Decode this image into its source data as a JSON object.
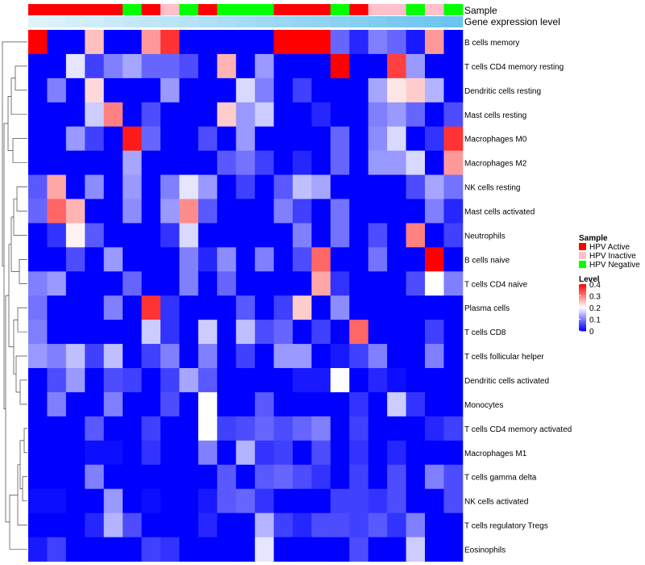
{
  "chart_data": {
    "type": "heatmap",
    "annotation_labels": [
      "Sample",
      "Gene expression level"
    ],
    "samples": [
      "HPV Active",
      "HPV Active",
      "HPV Active",
      "HPV Active",
      "HPV Active",
      "HPV Negative",
      "HPV Active",
      "HPV Inactive",
      "HPV Negative",
      "HPV Active",
      "HPV Negative",
      "HPV Negative",
      "HPV Negative",
      "HPV Active",
      "HPV Active",
      "HPV Active",
      "HPV Negative",
      "HPV Active",
      "HPV Inactive",
      "HPV Inactive",
      "HPV Negative",
      "HPV Inactive",
      "HPV Negative"
    ],
    "gene_expression_gradient": [
      "#e0f3fb",
      "#6ac4ee"
    ],
    "rows": [
      "B cells memory",
      "T cells CD4 memory resting",
      "Dendritic cells resting",
      "Mast cells resting",
      "Macrophages M0",
      "Macrophages M2",
      "NK cells resting",
      "Mast cells activated",
      "Neutrophils",
      "B cells naive",
      "T cells CD4 naive",
      "Plasma cells",
      "T cells CD8",
      "T cells follicular helper",
      "Dendritic cells activated",
      "Monocytes",
      "T cells CD4 memory activated",
      "Macrophages M1",
      "T cells gamma delta",
      "NK cells activated",
      "T cells regulatory  Tregs",
      "Eosinophils"
    ],
    "values": [
      [
        0.4,
        0.0,
        0.0,
        0.25,
        0.0,
        0.0,
        0.28,
        0.36,
        0.0,
        0.0,
        0.0,
        0.0,
        0.0,
        0.4,
        0.4,
        0.4,
        0.08,
        0.03,
        0.1,
        0.08,
        0.02,
        0.28,
        0.0
      ],
      [
        0.0,
        0.0,
        0.18,
        0.05,
        0.1,
        0.13,
        0.08,
        0.08,
        0.06,
        0.0,
        0.26,
        0.0,
        0.12,
        0.0,
        0.0,
        0.0,
        0.4,
        0.0,
        0.0,
        0.35,
        0.12,
        0.0,
        0.0
      ],
      [
        0.0,
        0.1,
        0.0,
        0.23,
        0.0,
        0.0,
        0.0,
        0.12,
        0.0,
        0.0,
        0.0,
        0.17,
        0.1,
        0.0,
        0.05,
        0.0,
        0.0,
        0.0,
        0.13,
        0.22,
        0.24,
        0.14,
        0.0
      ],
      [
        0.0,
        0.0,
        0.0,
        0.16,
        0.3,
        0.0,
        0.06,
        0.0,
        0.0,
        0.0,
        0.24,
        0.12,
        0.16,
        0.0,
        0.0,
        0.03,
        0.0,
        0.0,
        0.1,
        0.12,
        0.08,
        0.0,
        0.06
      ],
      [
        0.0,
        0.0,
        0.12,
        0.05,
        0.0,
        0.38,
        0.08,
        0.0,
        0.0,
        0.06,
        0.0,
        0.12,
        0.0,
        0.0,
        0.0,
        0.0,
        0.08,
        0.0,
        0.11,
        0.17,
        0.0,
        0.04,
        0.36
      ],
      [
        0.0,
        0.0,
        0.0,
        0.0,
        0.0,
        0.13,
        0.0,
        0.0,
        0.0,
        0.0,
        0.07,
        0.09,
        0.05,
        0.0,
        0.03,
        0.0,
        0.08,
        0.0,
        0.12,
        0.12,
        0.17,
        0.0,
        0.28
      ],
      [
        0.07,
        0.27,
        0.0,
        0.11,
        0.0,
        0.12,
        0.0,
        0.1,
        0.18,
        0.12,
        0.0,
        0.05,
        0.0,
        0.07,
        0.15,
        0.13,
        0.0,
        0.0,
        0.0,
        0.0,
        0.06,
        0.13,
        0.09
      ],
      [
        0.08,
        0.32,
        0.26,
        0.0,
        0.0,
        0.11,
        0.0,
        0.12,
        0.29,
        0.07,
        0.0,
        0.0,
        0.0,
        0.1,
        0.05,
        0.0,
        0.09,
        0.0,
        0.0,
        0.0,
        0.0,
        0.1,
        0.03
      ],
      [
        0.0,
        0.04,
        0.21,
        0.07,
        0.0,
        0.0,
        0.0,
        0.04,
        0.17,
        0.0,
        0.0,
        0.0,
        0.0,
        0.0,
        0.1,
        0.0,
        0.09,
        0.0,
        0.06,
        0.0,
        0.3,
        0.0,
        0.05
      ],
      [
        0.0,
        0.0,
        0.06,
        0.0,
        0.12,
        0.0,
        0.0,
        0.0,
        0.1,
        0.03,
        0.11,
        0.0,
        0.1,
        0.0,
        0.06,
        0.32,
        0.0,
        0.0,
        0.09,
        0.0,
        0.0,
        0.4,
        0.0
      ],
      [
        0.1,
        0.12,
        0.0,
        0.0,
        0.0,
        0.08,
        0.0,
        0.0,
        0.1,
        0.0,
        0.08,
        0.0,
        0.0,
        0.0,
        0.0,
        0.27,
        0.04,
        0.0,
        0.0,
        0.0,
        0.06,
        0.2,
        0.1
      ],
      [
        0.09,
        0.0,
        0.0,
        0.0,
        0.1,
        0.0,
        0.36,
        0.04,
        0.0,
        0.0,
        0.0,
        0.07,
        0.0,
        0.05,
        0.24,
        0.0,
        0.11,
        0.0,
        0.0,
        0.0,
        0.0,
        0.0,
        0.0
      ],
      [
        0.1,
        0.0,
        0.0,
        0.0,
        0.0,
        0.0,
        0.16,
        0.04,
        0.0,
        0.16,
        0.0,
        0.15,
        0.06,
        0.08,
        0.0,
        0.05,
        0.0,
        0.32,
        0.0,
        0.0,
        0.0,
        0.05,
        0.0
      ],
      [
        0.12,
        0.1,
        0.15,
        0.05,
        0.15,
        0.0,
        0.05,
        0.1,
        0.0,
        0.1,
        0.0,
        0.05,
        0.0,
        0.12,
        0.12,
        0.0,
        0.02,
        0.05,
        0.1,
        0.0,
        0.0,
        0.1,
        0.0
      ],
      [
        0.0,
        0.06,
        0.12,
        0.0,
        0.06,
        0.05,
        0.0,
        0.05,
        0.13,
        0.07,
        0.0,
        0.0,
        0.0,
        0.0,
        0.02,
        0.02,
        0.2,
        0.0,
        0.03,
        0.01,
        0.0,
        0.0,
        0.0
      ],
      [
        0.0,
        0.1,
        0.0,
        0.0,
        0.1,
        0.0,
        0.0,
        0.06,
        0.0,
        0.2,
        0.0,
        0.0,
        0.07,
        0.0,
        0.0,
        0.0,
        0.0,
        0.04,
        0.0,
        0.16,
        0.04,
        0.0,
        0.0
      ],
      [
        0.0,
        0.0,
        0.0,
        0.07,
        0.0,
        0.0,
        0.05,
        0.0,
        0.0,
        0.2,
        0.05,
        0.06,
        0.08,
        0.06,
        0.08,
        0.1,
        0.0,
        0.05,
        0.0,
        0.0,
        0.0,
        0.03,
        0.05
      ],
      [
        0.0,
        0.0,
        0.0,
        0.01,
        0.01,
        0.0,
        0.04,
        0.0,
        0.0,
        0.1,
        0.0,
        0.14,
        0.04,
        0.05,
        0.0,
        0.06,
        0.0,
        0.04,
        0.0,
        0.03,
        0.0,
        0.0,
        0.0
      ],
      [
        0.0,
        0.0,
        0.0,
        0.1,
        0.0,
        0.0,
        0.0,
        0.0,
        0.0,
        0.0,
        0.07,
        0.0,
        0.07,
        0.08,
        0.06,
        0.04,
        0.0,
        0.05,
        0.0,
        0.06,
        0.0,
        0.1,
        0.06
      ],
      [
        0.01,
        0.01,
        0.0,
        0.0,
        0.12,
        0.0,
        0.01,
        0.0,
        0.0,
        0.02,
        0.07,
        0.08,
        0.04,
        0.0,
        0.0,
        0.0,
        0.05,
        0.05,
        0.04,
        0.06,
        0.0,
        0.0,
        0.06
      ],
      [
        0.0,
        0.0,
        0.0,
        0.03,
        0.14,
        0.06,
        0.0,
        0.0,
        0.0,
        0.03,
        0.0,
        0.0,
        0.14,
        0.05,
        0.03,
        0.06,
        0.06,
        0.05,
        0.07,
        0.04,
        0.1,
        0.0,
        0.0
      ],
      [
        0.02,
        0.05,
        0.0,
        0.0,
        0.0,
        0.0,
        0.05,
        0.04,
        0.0,
        0.0,
        0.0,
        0.0,
        0.18,
        0.0,
        0.0,
        0.0,
        0.0,
        0.06,
        0.0,
        0.0,
        0.16,
        0.0,
        0.0
      ]
    ],
    "legend": {
      "sample_title": "Sample",
      "sample_entries": [
        {
          "label": "HPV Active",
          "color": "#ff0000"
        },
        {
          "label": "HPV Inactive",
          "color": "#ffc0cb"
        },
        {
          "label": "HPV Negative",
          "color": "#00ff00"
        }
      ],
      "level_title": "Level",
      "level_ticks": [
        "0.4",
        "0.3",
        "0.2",
        "0.1",
        "0"
      ],
      "level_range": [
        0,
        0.4
      ],
      "level_stops": [
        "#0000ff",
        "#ffffff",
        "#ff0000"
      ]
    }
  }
}
